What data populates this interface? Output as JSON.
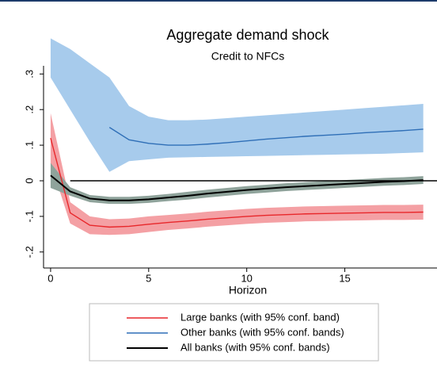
{
  "chart_data": {
    "type": "line_band",
    "title": "Aggregate demand shock",
    "subtitle": "Credit to NFCs",
    "x_label": "Horizon",
    "x": [
      0,
      1,
      2,
      3,
      4,
      5,
      6,
      7,
      8,
      9,
      10,
      11,
      12,
      13,
      14,
      15,
      16,
      17,
      18,
      19
    ],
    "xlim": [
      -0.36,
      19.7
    ],
    "xticks": [
      0,
      5,
      10,
      15
    ],
    "ylim": [
      -0.245,
      0.49
    ],
    "yticks": [
      {
        "value": -0.2,
        "label": "-.2"
      },
      {
        "value": -0.1,
        "label": "-.1"
      },
      0,
      {
        "value": 0.1,
        "label": ".1"
      },
      {
        "value": 0.2,
        "label": ".2"
      },
      {
        "value": 0.3,
        "label": ".3"
      }
    ],
    "series": [
      {
        "name": "Other banks (with 95% conf. bands)",
        "color": "#2f6fb7",
        "band_color": "#a7cbec",
        "values": [
          null,
          null,
          null,
          0.15,
          0.115,
          0.105,
          0.1,
          0.1,
          0.103,
          0.107,
          0.112,
          0.117,
          0.121,
          0.125,
          0.128,
          0.131,
          0.135,
          0.138,
          0.141,
          0.145
        ],
        "upper": [
          0.4,
          0.37,
          0.33,
          0.29,
          0.21,
          0.18,
          0.17,
          0.17,
          0.172,
          0.176,
          0.18,
          0.184,
          0.188,
          0.192,
          0.196,
          0.2,
          0.204,
          0.208,
          0.212,
          0.216
        ],
        "lower": [
          0.29,
          0.2,
          0.11,
          0.025,
          0.055,
          0.06,
          0.065,
          0.066,
          0.067,
          0.068,
          0.069,
          0.07,
          0.071,
          0.072,
          0.073,
          0.074,
          0.075,
          0.076,
          0.078,
          0.08
        ]
      },
      {
        "name": "Large banks (with 95% conf. band)",
        "color": "#e8272b",
        "band_color": "#f4a0a4",
        "values": [
          0.12,
          -0.09,
          -0.125,
          -0.13,
          -0.128,
          -0.122,
          -0.117,
          -0.113,
          -0.108,
          -0.104,
          -0.1,
          -0.097,
          -0.095,
          -0.093,
          -0.092,
          -0.091,
          -0.09,
          -0.089,
          -0.089,
          -0.088
        ],
        "upper": [
          0.19,
          -0.06,
          -0.1,
          -0.108,
          -0.106,
          -0.1,
          -0.096,
          -0.092,
          -0.087,
          -0.083,
          -0.079,
          -0.076,
          -0.074,
          -0.072,
          -0.071,
          -0.07,
          -0.069,
          -0.068,
          -0.068,
          -0.067
        ],
        "lower": [
          0.05,
          -0.12,
          -0.15,
          -0.152,
          -0.15,
          -0.144,
          -0.138,
          -0.134,
          -0.129,
          -0.125,
          -0.121,
          -0.118,
          -0.116,
          -0.114,
          -0.113,
          -0.112,
          -0.111,
          -0.11,
          -0.11,
          -0.109
        ]
      },
      {
        "name": "All banks (with 95% conf. bands)",
        "color": "#000000",
        "band_color": "#8fa39b",
        "values": [
          0.015,
          -0.03,
          -0.05,
          -0.055,
          -0.055,
          -0.052,
          -0.047,
          -0.042,
          -0.036,
          -0.031,
          -0.026,
          -0.022,
          -0.018,
          -0.015,
          -0.012,
          -0.009,
          -0.006,
          -0.003,
          -0.001,
          0.002
        ],
        "upper": [
          0.05,
          -0.018,
          -0.04,
          -0.045,
          -0.045,
          -0.042,
          -0.037,
          -0.031,
          -0.025,
          -0.02,
          -0.015,
          -0.011,
          -0.007,
          -0.004,
          -0.001,
          0.002,
          0.005,
          0.008,
          0.01,
          0.013
        ],
        "lower": [
          -0.02,
          -0.042,
          -0.06,
          -0.065,
          -0.065,
          -0.062,
          -0.057,
          -0.053,
          -0.047,
          -0.042,
          -0.037,
          -0.033,
          -0.029,
          -0.026,
          -0.023,
          -0.02,
          -0.017,
          -0.014,
          -0.012,
          -0.009
        ]
      }
    ],
    "legend_order": [
      1,
      0,
      2
    ]
  }
}
